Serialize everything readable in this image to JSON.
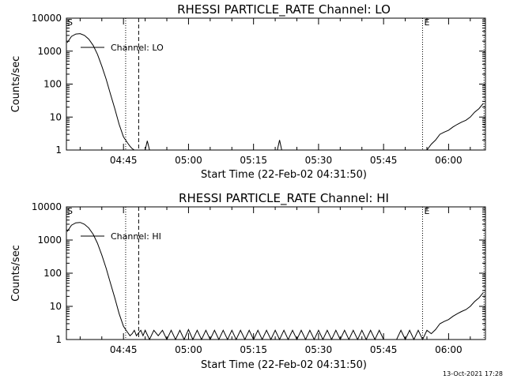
{
  "footer": {
    "timestamp": "13-Oct-2021 17:28"
  },
  "chart_data": [
    {
      "type": "line",
      "title": "RHESSI PARTICLE_RATE Channel: LO",
      "xlabel": "Start Time (22-Feb-02 04:31:50)",
      "ylabel": "Counts/sec",
      "y_scale": "log",
      "ylim": [
        1,
        10000
      ],
      "xlim": [
        "04:31:50",
        "06:08:30"
      ],
      "x_ticks": [
        "04:45",
        "05:00",
        "05:15",
        "05:30",
        "05:45",
        "06:00"
      ],
      "y_ticks": [
        "1",
        "10",
        "100",
        "1000",
        "10000"
      ],
      "legend": {
        "entry": "Channel: LO",
        "position": "top-left"
      },
      "markers": {
        "S": "04:31:50",
        "E": "05:54:00"
      },
      "dotted_lines": [
        "04:45:30",
        "05:54:00",
        "06:08:10"
      ],
      "dashed_lines": [
        "04:48:30"
      ],
      "series": [
        {
          "x": [
            "04:32:00",
            "04:33:00",
            "04:34:00",
            "04:35:00",
            "04:36:00",
            "04:37:00",
            "04:38:00",
            "04:39:00",
            "04:40:00",
            "04:41:00",
            "04:42:00",
            "04:43:00",
            "04:44:00",
            "04:45:00",
            "04:45:30",
            "04:46:00",
            "04:46:30",
            "04:47:00",
            "04:47:30",
            "04:48:00",
            "04:48:30",
            "04:49:00",
            "04:49:30",
            "04:50:00",
            "04:50:30",
            "04:51:00",
            "05:20:30",
            "05:21:00",
            "05:21:30",
            "05:55:00",
            "05:56:00",
            "05:57:00",
            "05:58:00",
            "05:59:00",
            "06:00:00",
            "06:01:00",
            "06:02:00",
            "06:03:00",
            "06:04:00",
            "06:05:00",
            "06:06:00",
            "06:07:00",
            "06:08:00"
          ],
          "values": [
            1800,
            2800,
            3300,
            3400,
            3000,
            2300,
            1500,
            800,
            350,
            140,
            50,
            18,
            6,
            2.5,
            2,
            1.6,
            1.3,
            1.1,
            1,
            1,
            1,
            1,
            1,
            1,
            1.9,
            1,
            1,
            2,
            1,
            1,
            1.5,
            2,
            3,
            3.5,
            4,
            5,
            6,
            7,
            8,
            10,
            14,
            18,
            26
          ]
        }
      ]
    },
    {
      "type": "line",
      "title": "RHESSI PARTICLE_RATE Channel: HI",
      "xlabel": "Start Time (22-Feb-02 04:31:50)",
      "ylabel": "Counts/sec",
      "y_scale": "log",
      "ylim": [
        1,
        10000
      ],
      "xlim": [
        "04:31:50",
        "06:08:30"
      ],
      "x_ticks": [
        "04:45",
        "05:00",
        "05:15",
        "05:30",
        "05:45",
        "06:00"
      ],
      "y_ticks": [
        "1",
        "10",
        "100",
        "1000",
        "10000"
      ],
      "legend": {
        "entry": "Channel: HI",
        "position": "top-left"
      },
      "markers": {
        "S": "04:31:50",
        "E": "05:54:00"
      },
      "dotted_lines": [
        "04:45:30",
        "05:54:00",
        "06:08:10"
      ],
      "dashed_lines": [
        "04:48:30"
      ],
      "series": [
        {
          "x": [
            "04:32:00",
            "04:33:00",
            "04:34:00",
            "04:35:00",
            "04:36:00",
            "04:37:00",
            "04:38:00",
            "04:39:00",
            "04:40:00",
            "04:41:00",
            "04:42:00",
            "04:43:00",
            "04:44:00",
            "04:45:00",
            "04:45:30",
            "04:46:00",
            "04:46:30",
            "04:47:00",
            "04:47:30",
            "04:48:00",
            "04:48:30",
            "04:49:00",
            "04:49:30",
            "04:50:00",
            "04:51:00",
            "04:52:00",
            "04:53:00",
            "04:54:00",
            "04:55:00",
            "04:56:00",
            "04:57:00",
            "04:58:00",
            "04:59:00",
            "05:00:00",
            "05:01:00",
            "05:02:00",
            "05:03:00",
            "05:04:00",
            "05:05:00",
            "05:06:00",
            "05:07:00",
            "05:08:00",
            "05:09:00",
            "05:10:00",
            "05:11:00",
            "05:12:00",
            "05:13:00",
            "05:14:00",
            "05:15:00",
            "05:16:00",
            "05:17:00",
            "05:18:00",
            "05:19:00",
            "05:20:00",
            "05:21:00",
            "05:22:00",
            "05:23:00",
            "05:24:00",
            "05:25:00",
            "05:26:00",
            "05:27:00",
            "05:28:00",
            "05:29:00",
            "05:30:00",
            "05:31:00",
            "05:32:00",
            "05:33:00",
            "05:34:00",
            "05:35:00",
            "05:36:00",
            "05:37:00",
            "05:38:00",
            "05:39:00",
            "05:40:00",
            "05:41:00",
            "05:42:00",
            "05:43:00",
            "05:44:00",
            "05:45:00",
            "05:46:00",
            "05:47:00",
            "05:48:00",
            "05:49:00",
            "05:50:00",
            "05:51:00",
            "05:52:00",
            "05:53:00",
            "05:54:00",
            "05:55:00",
            "05:56:00",
            "05:57:00",
            "05:58:00",
            "05:59:00",
            "06:00:00",
            "06:01:00",
            "06:02:00",
            "06:03:00",
            "06:04:00",
            "06:05:00",
            "06:06:00",
            "06:07:00",
            "06:08:00"
          ],
          "values": [
            1800,
            2800,
            3300,
            3400,
            3000,
            2300,
            1500,
            800,
            350,
            140,
            50,
            18,
            6,
            2.5,
            2,
            1.6,
            1.3,
            1.5,
            1.9,
            1.3,
            1.6,
            1.9,
            1.3,
            1.9,
            1,
            1.9,
            1.3,
            1.9,
            1,
            1.9,
            1,
            1.9,
            1,
            2,
            1,
            1.9,
            1,
            1.9,
            1,
            1.9,
            1,
            1.9,
            1,
            1.9,
            1,
            1.9,
            1,
            1.9,
            1,
            1.9,
            1,
            1.9,
            1,
            1.9,
            1,
            1.9,
            1,
            1.9,
            1,
            1.9,
            1,
            1.9,
            1,
            1.9,
            1,
            1.9,
            1,
            1.9,
            1,
            1.9,
            1,
            1.9,
            1,
            1.9,
            1,
            1.9,
            1,
            1.9,
            1,
            1,
            1,
            1,
            1.9,
            1,
            1.9,
            1,
            1.9,
            1,
            1.9,
            1.5,
            2,
            3,
            3.5,
            4,
            5,
            6,
            7,
            8,
            10,
            14,
            18,
            26
          ]
        }
      ]
    }
  ]
}
